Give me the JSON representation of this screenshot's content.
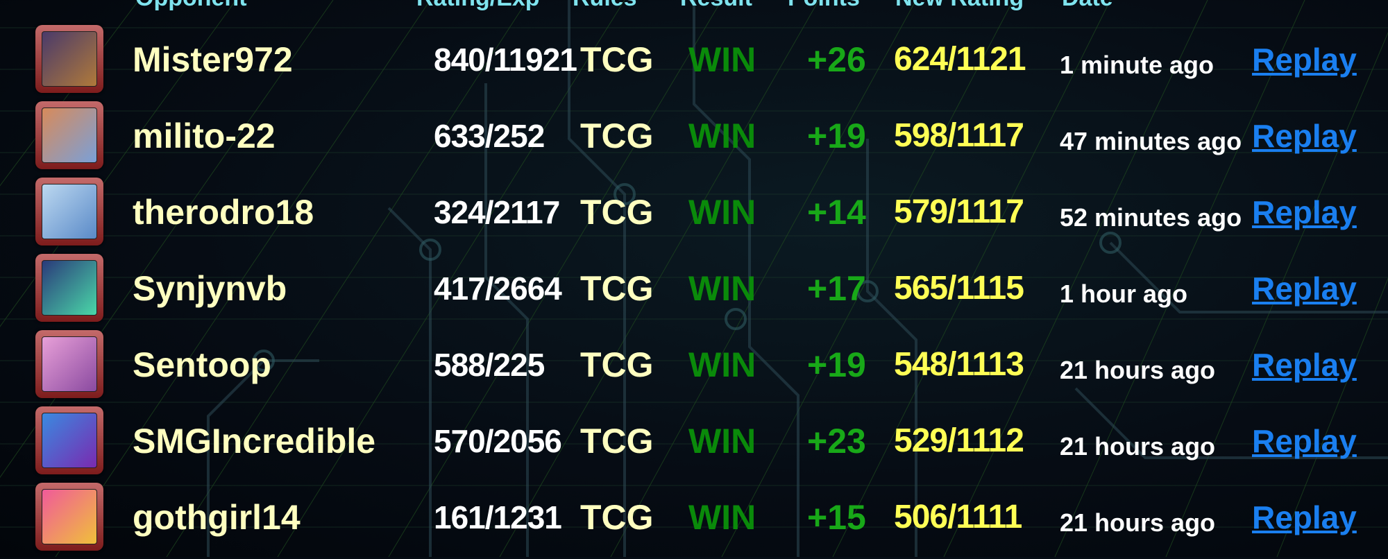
{
  "header": {
    "opponent": "Opponent",
    "rating_exp": "Rating/Exp",
    "rules": "Rules",
    "result": "Result",
    "points": "Points",
    "new_rating": "New Rating",
    "date": "Date"
  },
  "colors": {
    "name": "#ffffc0",
    "result_win": "#0a8a0a",
    "points": "#18a818",
    "new_rating": "#ffff55",
    "replay_link": "#1a7ff0",
    "header": "#7fe3ee"
  },
  "rows": [
    {
      "opponent": "Mister972",
      "rating": "840/11921",
      "rules": "TCG",
      "result": "WIN",
      "points": "+26",
      "new_rating": "624/1121",
      "date": "1 minute ago",
      "replay": "Replay",
      "avatar_colors": [
        "#4a3a6a",
        "#b07a3a"
      ]
    },
    {
      "opponent": "milito-22",
      "rating": "633/252",
      "rules": "TCG",
      "result": "WIN",
      "points": "+19",
      "new_rating": "598/1117",
      "date": "47 minutes ago",
      "replay": "Replay",
      "avatar_colors": [
        "#d88a5a",
        "#7aa0d8"
      ]
    },
    {
      "opponent": "therodro18",
      "rating": "324/2117",
      "rules": "TCG",
      "result": "WIN",
      "points": "+14",
      "new_rating": "579/1117",
      "date": "52 minutes ago",
      "replay": "Replay",
      "avatar_colors": [
        "#bcd8f0",
        "#5a8ac8"
      ]
    },
    {
      "opponent": "Synjynvb",
      "rating": "417/2664",
      "rules": "TCG",
      "result": "WIN",
      "points": "+17",
      "new_rating": "565/1115",
      "date": "1 hour ago",
      "replay": "Replay",
      "avatar_colors": [
        "#2a3a7a",
        "#4ad8a8"
      ]
    },
    {
      "opponent": "Sentoop",
      "rating": "588/225",
      "rules": "TCG",
      "result": "WIN",
      "points": "+19",
      "new_rating": "548/1113",
      "date": "21 hours ago",
      "replay": "Replay",
      "avatar_colors": [
        "#e8a0d8",
        "#8a4aa0"
      ]
    },
    {
      "opponent": "SMGIncredible",
      "rating": "570/2056",
      "rules": "TCG",
      "result": "WIN",
      "points": "+23",
      "new_rating": "529/1112",
      "date": "21 hours ago",
      "replay": "Replay",
      "avatar_colors": [
        "#3a8ae0",
        "#7a2ab0"
      ]
    },
    {
      "opponent": "gothgirl14",
      "rating": "161/1231",
      "rules": "TCG",
      "result": "WIN",
      "points": "+15",
      "new_rating": "506/1111",
      "date": "21 hours ago",
      "replay": "Replay",
      "avatar_colors": [
        "#f05a9a",
        "#f0c03a"
      ]
    }
  ]
}
